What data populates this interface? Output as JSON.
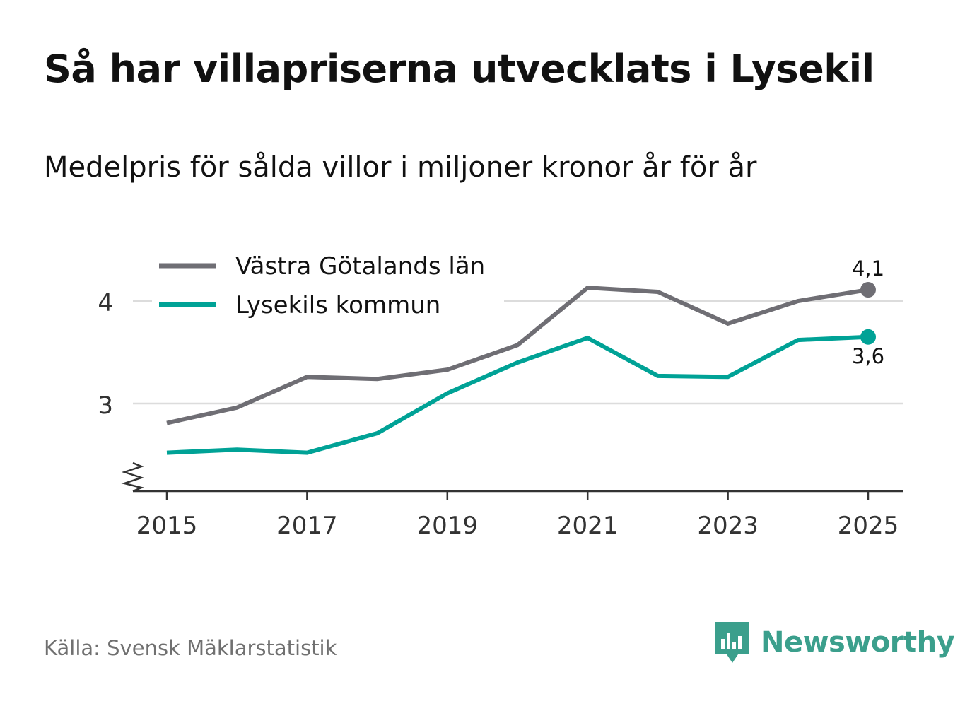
{
  "title": "Så har villapriserna utvecklats i Lysekil",
  "subtitle": "Medelpris för sålda villor i miljoner kronor år för år",
  "source": "Källa: Svensk Mäklarstatistik",
  "brand": {
    "name": "Newsworthy",
    "icon": "newsworthy-logo-icon",
    "color": "#3b9f8c"
  },
  "chart_data": {
    "type": "line",
    "title": "Så har villapriserna utvecklats i Lysekil",
    "subtitle": "Medelpris för sålda villor i miljoner kronor år för år",
    "x": [
      2015,
      2016,
      2017,
      2018,
      2019,
      2020,
      2021,
      2022,
      2023,
      2024,
      2025
    ],
    "series": [
      {
        "name": "Västra Götalands län",
        "color": "#6f6e74",
        "values": [
          2.81,
          2.96,
          3.26,
          3.24,
          3.33,
          3.57,
          4.13,
          4.09,
          3.78,
          4.0,
          4.11
        ],
        "end_label": "4,1"
      },
      {
        "name": "Lysekils kommun",
        "color": "#00a296",
        "values": [
          2.52,
          2.55,
          2.52,
          2.71,
          3.1,
          3.4,
          3.64,
          3.27,
          3.26,
          3.62,
          3.65
        ],
        "end_label": "3,6"
      }
    ],
    "xticks": [
      "2015",
      "2017",
      "2019",
      "2021",
      "2023",
      "2025"
    ],
    "yticks": [
      "3",
      "4"
    ],
    "ylim": [
      2.2,
      4.3
    ],
    "xlabel": "",
    "ylabel": "",
    "grid": true,
    "legend": "top-left",
    "axis_break": true
  }
}
